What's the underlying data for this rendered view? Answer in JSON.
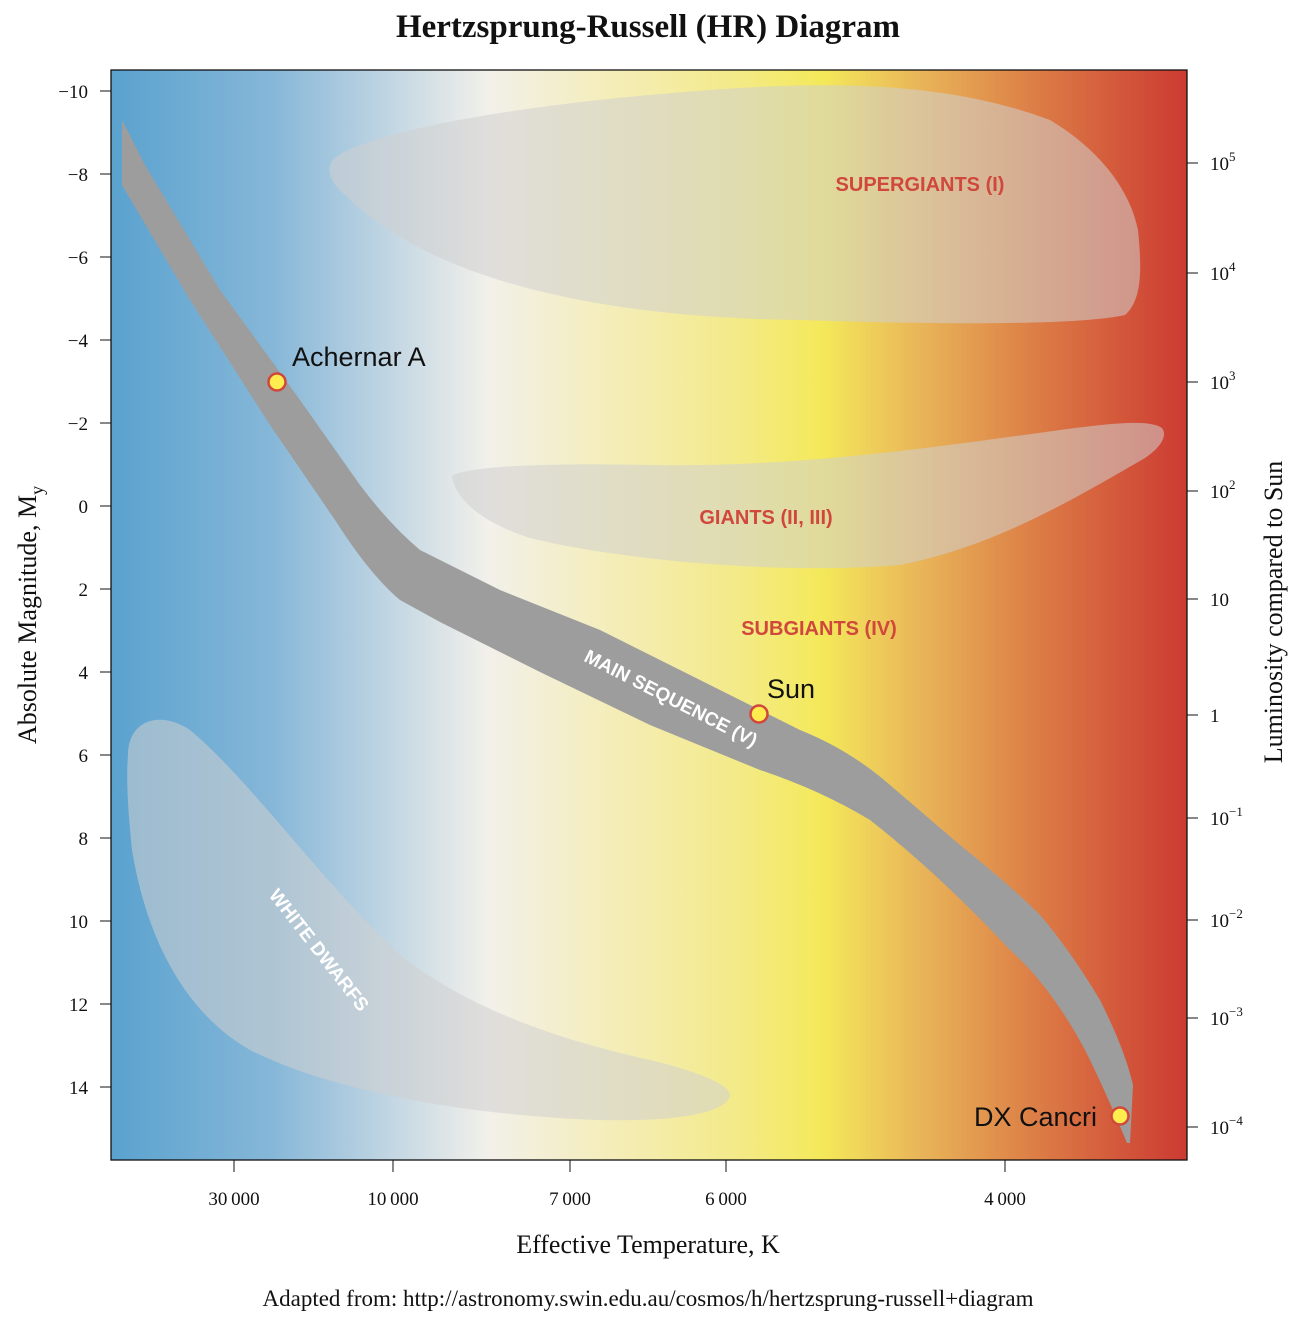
{
  "title": "Hertzsprung-Russell (HR) Diagram",
  "y_axis_left": {
    "label": "Absolute Magnitude, M",
    "label_subscript": "y",
    "ticks": [
      "−10",
      "−8",
      "−6",
      "−4",
      "−2",
      "0",
      "2",
      "4",
      "6",
      "8",
      "10",
      "12",
      "14"
    ]
  },
  "y_axis_right": {
    "label": "Luminosity compared to Sun",
    "ticks": [
      {
        "base": "10",
        "exp": "5"
      },
      {
        "base": "10",
        "exp": "4"
      },
      {
        "base": "10",
        "exp": "3"
      },
      {
        "base": "10",
        "exp": "2"
      },
      {
        "base": "10",
        "exp": ""
      },
      {
        "base": "1",
        "exp": ""
      },
      {
        "base": "10",
        "exp": "−1"
      },
      {
        "base": "10",
        "exp": "−2"
      },
      {
        "base": "10",
        "exp": "−3"
      },
      {
        "base": "10",
        "exp": "−4"
      }
    ]
  },
  "x_axis": {
    "label": "Effective Temperature, K",
    "ticks": [
      "30 000",
      "10 000",
      "7 000",
      "6 000",
      "4 000"
    ]
  },
  "regions": {
    "supergiants": "SUPERGIANTS (I)",
    "giants": "GIANTS (II, III)",
    "subgiants": "SUBGIANTS (IV)",
    "main_sequence": "MAIN SEQUENCE (V)",
    "white_dwarfs": "WHITE DWARFS"
  },
  "stars": [
    {
      "name": "Achernar A",
      "magnitude": -3.0
    },
    {
      "name": "Sun",
      "magnitude": 5.0
    },
    {
      "name": "DX Cancri",
      "magnitude": 14.7
    }
  ],
  "source": "Adapted from: http://astronomy.swin.edu.au/cosmos/h/hertzsprung-russell+diagram",
  "colors": {
    "hot": "#5aa2cf",
    "neutral": "#f2f0ea",
    "yellow": "#f4e95a",
    "cool": "#cc3a32",
    "main_sequence_band": "#9d9d9d",
    "region_label": "#d0473c",
    "star_fill": "#ffec4f",
    "star_stroke": "#d0473c"
  }
}
